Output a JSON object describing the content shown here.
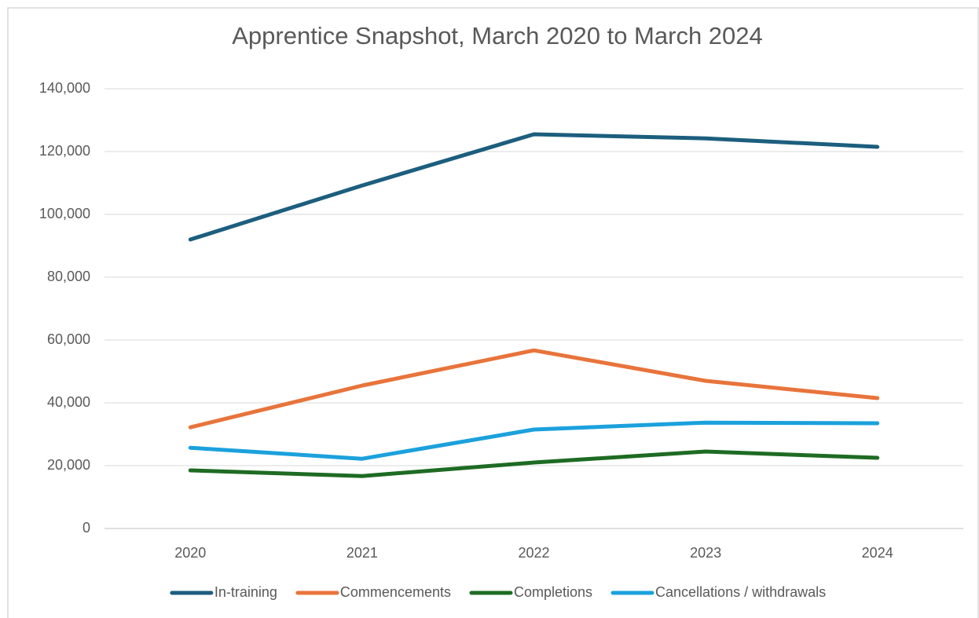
{
  "chart_data": {
    "type": "line",
    "title": "Apprentice Snapshot, March 2020 to March 2024",
    "categories": [
      "2020",
      "2021",
      "2022",
      "2023",
      "2024"
    ],
    "series": [
      {
        "name": "In-training",
        "color": "#1c5e7e",
        "values": [
          92000,
          109200,
          125500,
          124200,
          121500
        ]
      },
      {
        "name": "Commencements",
        "color": "#e8743b",
        "values": [
          32200,
          45500,
          56700,
          47000,
          41500
        ]
      },
      {
        "name": "Completions",
        "color": "#1e6b23",
        "values": [
          18500,
          16700,
          21000,
          24500,
          22500
        ]
      },
      {
        "name": "Cancellations / withdrawals",
        "color": "#1ba1dc",
        "values": [
          25700,
          22200,
          31500,
          33700,
          33500
        ]
      }
    ],
    "ylim": [
      0,
      140000
    ],
    "yticks": [
      0,
      {
        "value": 20000,
        "label": "20,000"
      },
      {
        "value": 40000,
        "label": "40,000"
      },
      {
        "value": 60000,
        "label": "60,000"
      },
      {
        "value": 80000,
        "label": "80,000"
      },
      {
        "value": 100000,
        "label": "100,000"
      },
      {
        "value": 120000,
        "label": "120,000"
      },
      {
        "value": 140000,
        "label": "140,000"
      }
    ],
    "grid": true,
    "legend": "bottom"
  }
}
